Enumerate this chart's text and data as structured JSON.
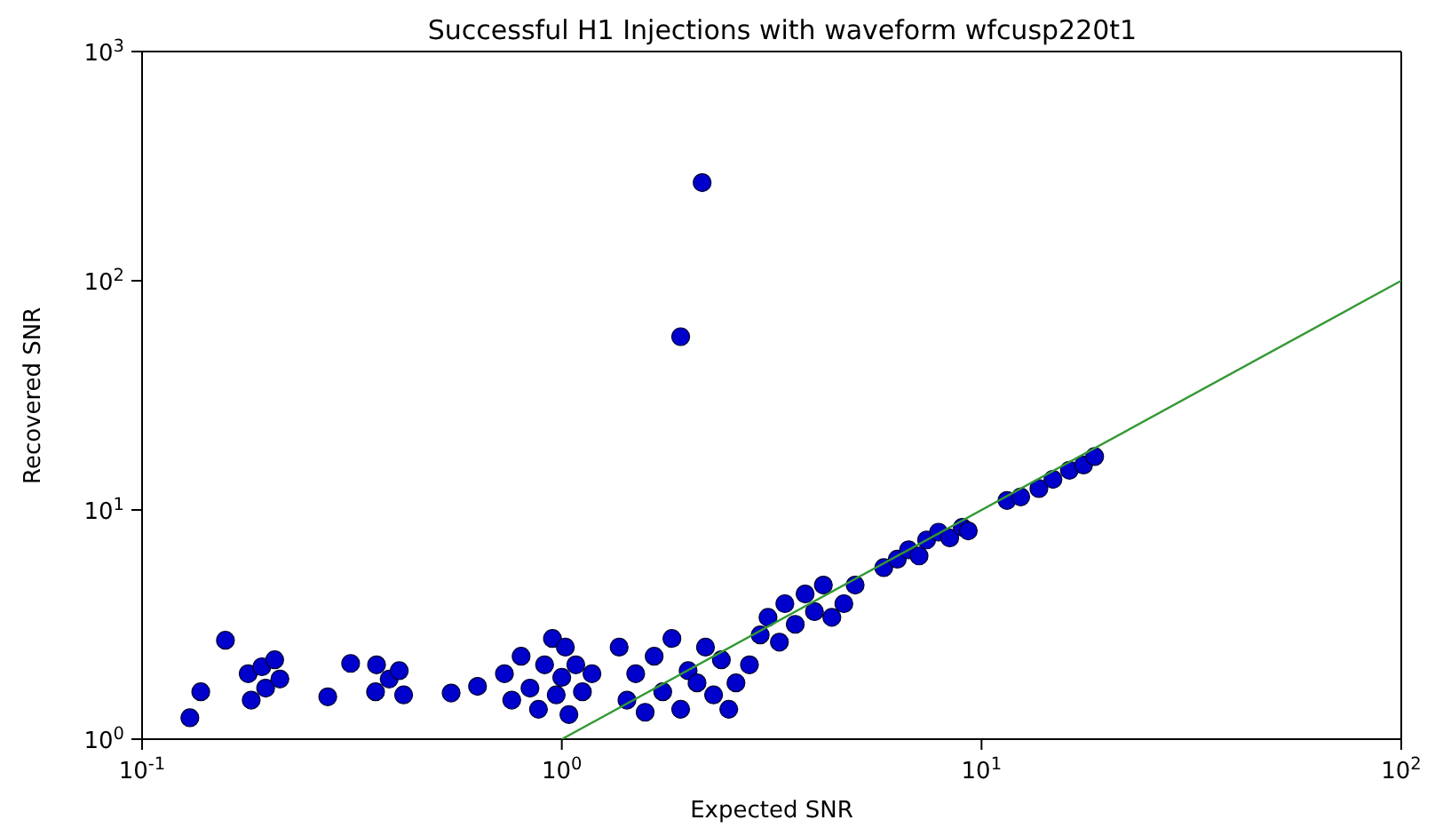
{
  "chart_data": {
    "type": "scatter",
    "title": "Successful H1 Injections with waveform wfcusp220t1",
    "xlabel": "Expected SNR",
    "ylabel": "Recovered SNR",
    "log": "xy",
    "grid": false,
    "legend": false,
    "marker": "circle",
    "xlim": [
      0.1,
      100
    ],
    "ylim": [
      1,
      1000
    ],
    "xticks": [
      {
        "value": 0.1,
        "label": "10$^{-1}$"
      },
      {
        "value": 1,
        "label": "10$^{0}$"
      },
      {
        "value": 10,
        "label": "10$^{1}$"
      },
      {
        "value": 100,
        "label": "10$^{2}$"
      }
    ],
    "yticks": [
      {
        "value": 1,
        "label": "10$^{0}$"
      },
      {
        "value": 10,
        "label": "10$^{1}$"
      },
      {
        "value": 100,
        "label": "10$^{2}$"
      },
      {
        "value": 1000,
        "label": "10$^{3}$"
      }
    ],
    "series": [
      {
        "color": "#0000cc",
        "x": [
          0.13,
          0.138,
          0.158,
          0.179,
          0.182,
          0.193,
          0.197,
          0.207,
          0.213,
          0.277,
          0.314,
          0.362,
          0.36,
          0.388,
          0.41,
          0.42,
          0.545,
          0.63,
          0.73,
          0.76,
          0.8,
          0.84,
          0.88,
          0.91,
          0.95,
          0.97,
          1.0,
          1.02,
          1.04,
          1.08,
          1.12,
          1.18,
          1.37,
          1.43,
          1.5,
          1.58,
          1.66,
          1.74,
          1.83,
          1.92,
          2.0,
          2.1,
          2.2,
          2.3,
          2.4,
          2.5,
          2.6,
          2.8,
          2.97,
          3.1,
          3.3,
          3.4,
          3.6,
          3.8,
          4.0,
          4.2,
          4.4,
          4.7,
          5.0,
          2.16,
          1.92,
          5.85,
          6.3,
          6.7,
          7.1,
          7.4,
          7.9,
          8.4,
          9.0,
          9.3,
          11.5,
          12.4,
          13.7,
          14.8,
          16.2,
          17.5,
          18.6
        ],
        "values": [
          1.24,
          1.61,
          2.7,
          1.93,
          1.48,
          2.07,
          1.67,
          2.22,
          1.83,
          1.53,
          2.14,
          2.11,
          1.61,
          1.83,
          1.99,
          1.56,
          1.59,
          1.7,
          1.93,
          1.48,
          2.3,
          1.67,
          1.35,
          2.11,
          2.75,
          1.56,
          1.86,
          2.52,
          1.28,
          2.11,
          1.61,
          1.93,
          2.52,
          1.48,
          1.93,
          1.31,
          2.3,
          1.61,
          2.75,
          1.35,
          1.99,
          1.76,
          2.52,
          1.56,
          2.22,
          1.35,
          1.76,
          2.11,
          2.85,
          3.4,
          2.65,
          3.9,
          3.17,
          4.3,
          3.6,
          4.7,
          3.4,
          3.9,
          4.7,
          268,
          57,
          5.6,
          6.1,
          6.7,
          6.3,
          7.4,
          8.0,
          7.55,
          8.4,
          8.1,
          11.0,
          11.4,
          12.4,
          13.6,
          14.9,
          15.7,
          17.1
        ]
      },
      {
        "type": "line",
        "color": "#339933",
        "marker": "none",
        "x": [
          1,
          100
        ],
        "values": [
          1,
          100
        ]
      }
    ]
  }
}
